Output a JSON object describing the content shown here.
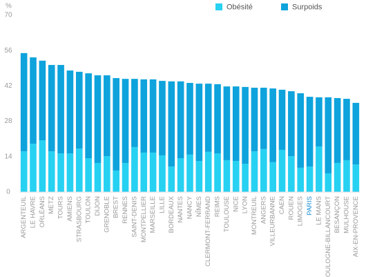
{
  "chart_data": {
    "type": "stacked_bar",
    "y_label": "%",
    "categories": [
      "ARGENTEUIL",
      "LE HAVRE",
      "ORLÉANS",
      "METZ",
      "TOURS",
      "AMIENS",
      "STRASBOURG",
      "TOULON",
      "DIJON",
      "GRENOBLE",
      "BREST",
      "RENNES",
      "SAINT-DENIS",
      "MONTPELLIER",
      "MARSEILLE",
      "LILLE",
      "BORDEAUX",
      "NANTES",
      "NANCY",
      "NÎMES",
      "CLERMONT-FERRAND",
      "REIMS",
      "TOULOUSE",
      "NICE",
      "LYON",
      "MONTREUIL",
      "ANGERS",
      "VILLEURBANNE",
      "CAEN",
      "ROUEN",
      "LIMOGES",
      "PARIS",
      "LE MANS",
      "BOULOGNE-BILLANCOURT",
      "BESANÇON",
      "MULHOUSE",
      "AIX-EN-PROVENCE"
    ],
    "series": [
      {
        "name": "Obésité",
        "color": "#27d1f2",
        "values": [
          16.1,
          19.1,
          20.5,
          16.1,
          15.3,
          15.3,
          17.2,
          13.4,
          11.5,
          14.2,
          8.5,
          11.5,
          17.8,
          15.6,
          15.6,
          14.5,
          10.1,
          13.4,
          14.8,
          12.3,
          15.9,
          15.3,
          12.6,
          12.3,
          11.2,
          16.1,
          17.0,
          11.8,
          16.7,
          14.2,
          9.6,
          10.1,
          18.0,
          7.4,
          11.5,
          12.6,
          10.9
        ]
      },
      {
        "name": "Surpoids",
        "color": "#0ea3dc",
        "values": [
          38.9,
          34.2,
          31.5,
          34.2,
          35.0,
          32.8,
          30.4,
          33.6,
          34.7,
          32.0,
          36.6,
          33.3,
          27.0,
          29.0,
          29.0,
          29.5,
          33.7,
          30.4,
          28.4,
          30.6,
          27.0,
          27.4,
          29.2,
          29.5,
          30.4,
          25.2,
          24.3,
          29.2,
          23.8,
          25.7,
          29.5,
          27.6,
          19.5,
          30.1,
          25.7,
          24.3,
          24.4
        ]
      }
    ],
    "ylim": [
      0,
      70
    ],
    "yticks": [
      0,
      14,
      28,
      42,
      56,
      70
    ],
    "grid": false,
    "legend": "top-right",
    "highlight": {
      "category": "PARIS",
      "color": "#1c8fd6"
    }
  }
}
